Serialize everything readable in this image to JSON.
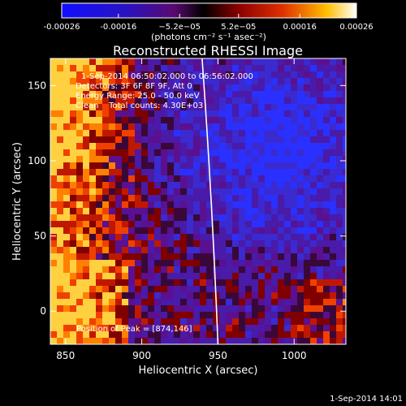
{
  "chart_data": {
    "type": "heatmap",
    "title": "Reconstructed RHESSI Image",
    "xlabel": "Heliocentric X (arcsec)",
    "ylabel": "Heliocentric Y (arcsec)",
    "xlim": [
      840,
      1034
    ],
    "ylim": [
      -22,
      168
    ],
    "x_ticks": [
      850,
      900,
      950,
      1000
    ],
    "y_ticks": [
      0,
      50,
      100,
      150
    ],
    "colorbar": {
      "range": [
        -0.00026,
        0.00026
      ],
      "tick_values": [
        -0.00026,
        -0.00016,
        -5.2e-05,
        5.2e-05,
        0.00016,
        0.00026
      ],
      "tick_labels": [
        "-0.00026",
        "-0.00016",
        "−5.2e−05",
        "5.2e−05",
        "0.00016",
        "0.00026"
      ],
      "unit_label": "(photons cm⁻² s⁻¹ asec⁻²)"
    },
    "annotations": [
      "1-Sep-2014 06:50:02.000 to 06:56:02.000",
      "Detectors: 3F 6F 8F 9F, Att 0",
      "Energy Range: 25.0 - 50.0 keV",
      "Clean    Total counts: 4.30E+03"
    ],
    "peak_label": "Position of Peak = [874,146]",
    "peak": [
      874,
      146
    ],
    "limb_x_at_top": 946,
    "limb_x_at_bottom": 950,
    "footer_timestamp": "1-Sep-2014 14:01"
  }
}
